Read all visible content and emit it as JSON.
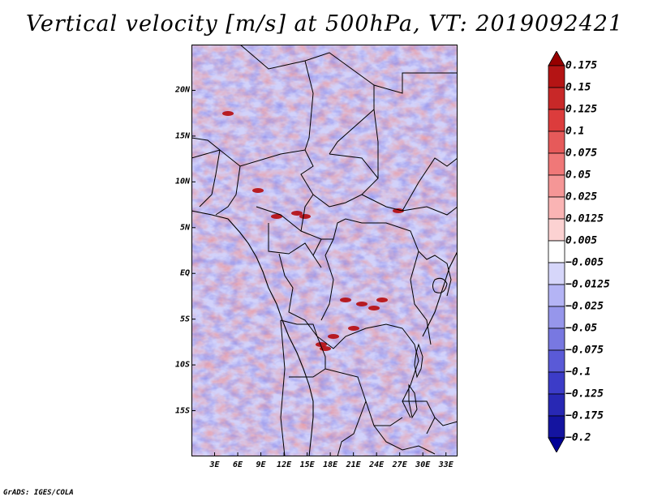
{
  "title": "Vertical velocity [m/s] at 500hPa, VT: 2019092421",
  "credit": "GrADS: IGES/COLA",
  "lat_labels": [
    "20N",
    "15N",
    "10N",
    "5N",
    "EQ",
    "5S",
    "10S",
    "15S"
  ],
  "lat_values": [
    20,
    15,
    10,
    5,
    0,
    -5,
    -10,
    -15
  ],
  "lon_labels": [
    "3E",
    "6E",
    "9E",
    "12E",
    "15E",
    "18E",
    "21E",
    "24E",
    "27E",
    "30E",
    "33E"
  ],
  "lon_values": [
    3,
    6,
    9,
    12,
    15,
    18,
    21,
    24,
    27,
    30,
    33
  ],
  "extent": {
    "lon_min": 0,
    "lon_max": 34.5,
    "lat_min": -20,
    "lat_max": 25
  },
  "colorbar": {
    "labels": [
      "0.175",
      "0.15",
      "0.125",
      "0.1",
      "0.075",
      "0.05",
      "0.025",
      "0.0125",
      "0.005",
      "−0.005",
      "−0.0125",
      "−0.025",
      "−0.05",
      "−0.075",
      "−0.1",
      "−0.125",
      "−0.175",
      "−0.2"
    ],
    "colors": [
      "#960000",
      "#b41414",
      "#c82828",
      "#dc3c3c",
      "#e65a5a",
      "#f07878",
      "#f59696",
      "#fab4b4",
      "#fcd2d2",
      "#ffffff",
      "#d6d6fa",
      "#b4b4f5",
      "#9696eb",
      "#7878e1",
      "#5a5ad7",
      "#3c3cc8",
      "#2828b4",
      "#1414a0",
      "#000096"
    ]
  },
  "field_palette": {
    "strong_up": "#b40000",
    "up": "#f08c8c",
    "weak_up": "#fcd2d2",
    "neutral": "#ffffff",
    "weak_down": "#d2d2fa",
    "down": "#8c8ceb",
    "strong_down": "#2d2dbe"
  }
}
